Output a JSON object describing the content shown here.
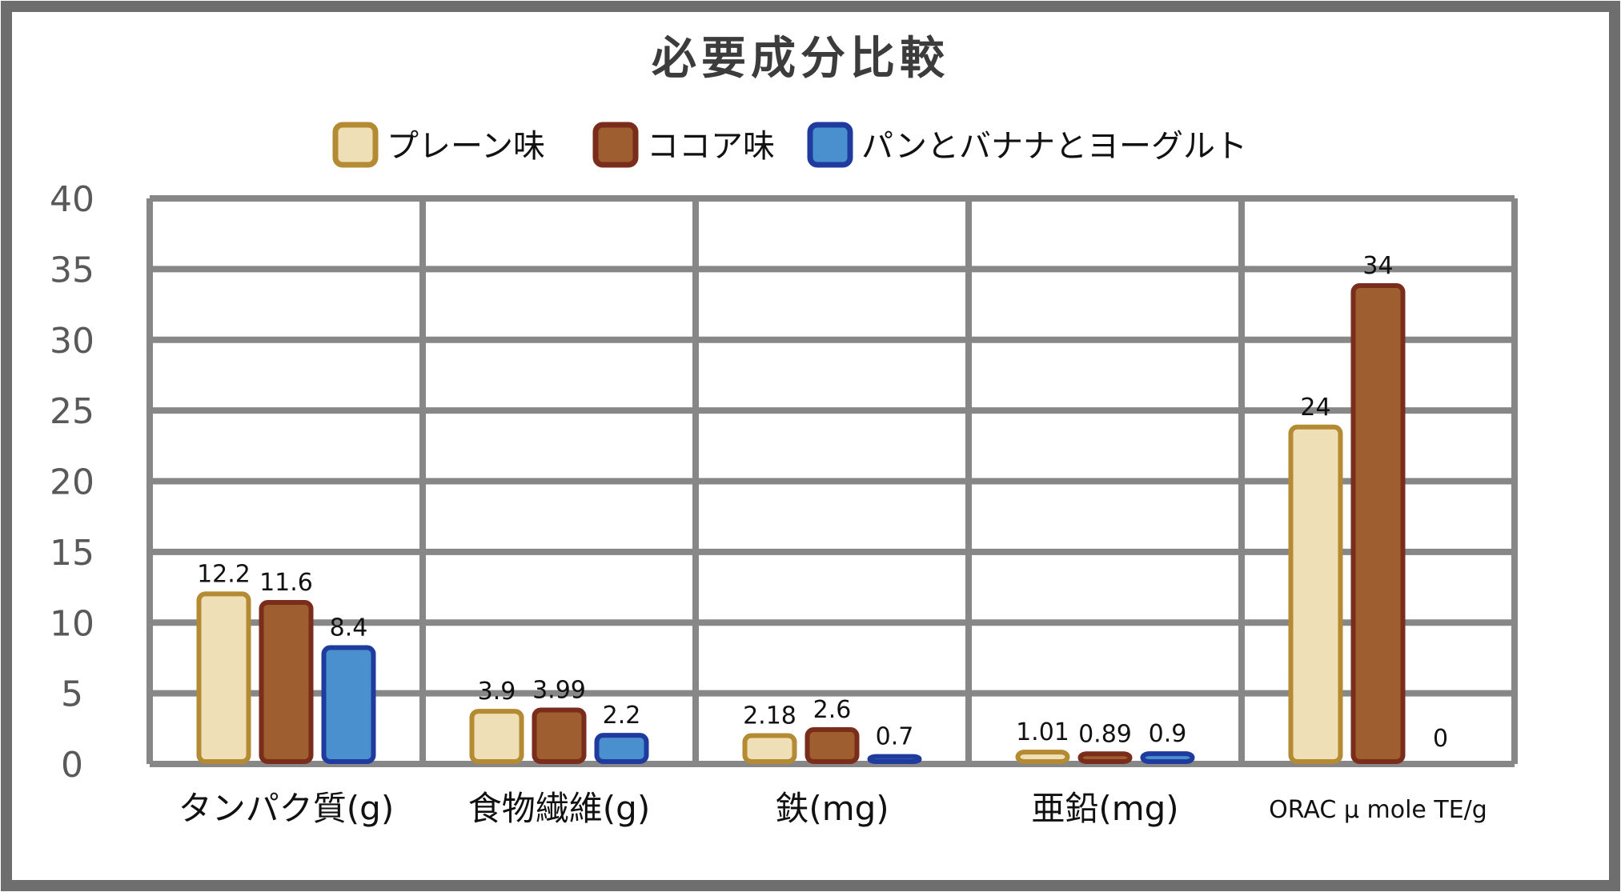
{
  "chart_data": {
    "type": "bar",
    "title": "必要成分比較",
    "categories": [
      "タンパク質(g)",
      "食物繊維(g)",
      "鉄(mg)",
      "亜鉛(mg)",
      "ORAC μ mole TE/g"
    ],
    "series": [
      {
        "name": "プレーン味",
        "values": [
          12.2,
          3.9,
          2.18,
          1.01,
          24
        ],
        "labels": [
          "12.2",
          "3.9",
          "2.18",
          "1.01",
          "24"
        ],
        "fill": "#efdfb6",
        "stroke": "#b48a33"
      },
      {
        "name": "ココア味",
        "values": [
          11.6,
          3.99,
          2.6,
          0.89,
          34
        ],
        "labels": [
          "11.6",
          "3.99",
          "2.6",
          "0.89",
          "34"
        ],
        "fill": "#9e5e30",
        "stroke": "#7a2d1a"
      },
      {
        "name": "パンとバナナとヨーグルト",
        "values": [
          8.4,
          2.2,
          0.7,
          0.9,
          0
        ],
        "labels": [
          "8.4",
          "2.2",
          "0.7",
          "0.9",
          "0"
        ],
        "fill": "#4a90cf",
        "stroke": "#1f3b9e"
      }
    ],
    "ylim": [
      0,
      40
    ],
    "yticks": [
      0,
      5,
      10,
      15,
      20,
      25,
      30,
      35,
      40
    ],
    "grid": true,
    "legend_position": "top"
  }
}
